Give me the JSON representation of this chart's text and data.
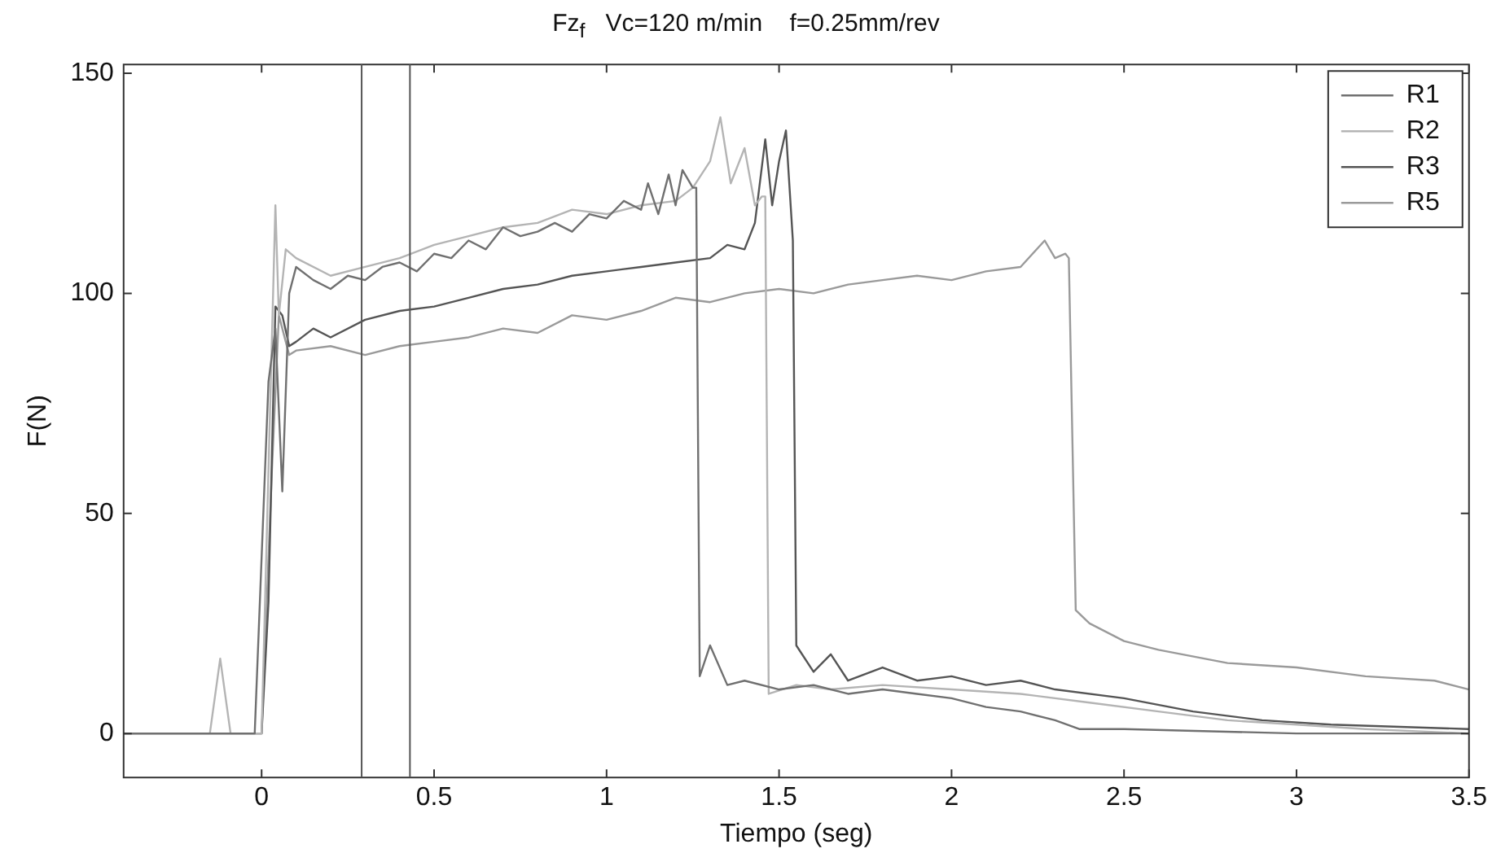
{
  "chart_data": {
    "type": "line",
    "title": "Fz$_{f}$   Vc=120 m/min    f=0.25mm/rev",
    "xlabel": "Tiempo (seg)",
    "ylabel": "F(N)",
    "xlim": [
      -0.4,
      3.5
    ],
    "xticks": [
      0,
      0.5,
      1,
      1.5,
      2,
      2.5,
      3,
      3.5
    ],
    "ylim": [
      -10,
      152
    ],
    "yticks": [
      0,
      50,
      100,
      150
    ],
    "grid": false,
    "legend": "top right",
    "line_style": "solid",
    "marker": "none",
    "ref_lines": [
      {
        "axis": "x",
        "value": 0.29,
        "color": "#555555"
      },
      {
        "axis": "x",
        "value": 0.43,
        "color": "#555555"
      }
    ],
    "series": [
      {
        "name": "R1",
        "color": "#707070",
        "x": [
          -0.4,
          -0.02,
          0.0,
          0.02,
          0.04,
          0.06,
          0.08,
          0.1,
          0.15,
          0.2,
          0.25,
          0.3,
          0.35,
          0.4,
          0.45,
          0.5,
          0.55,
          0.6,
          0.65,
          0.7,
          0.75,
          0.8,
          0.85,
          0.9,
          0.95,
          1.0,
          1.05,
          1.1,
          1.12,
          1.15,
          1.18,
          1.2,
          1.22,
          1.25,
          1.26,
          1.27,
          1.3,
          1.35,
          1.4,
          1.5,
          1.6,
          1.7,
          1.8,
          1.9,
          2.0,
          2.1,
          2.2,
          2.3,
          2.37,
          2.5,
          3.0,
          3.5
        ],
        "values": [
          0,
          0,
          40,
          80,
          92,
          55,
          100,
          106,
          103,
          101,
          104,
          103,
          106,
          107,
          105,
          109,
          108,
          112,
          110,
          115,
          113,
          114,
          116,
          114,
          118,
          117,
          121,
          119,
          125,
          118,
          127,
          120,
          128,
          124,
          124,
          13,
          20,
          11,
          12,
          10,
          11,
          9,
          10,
          9,
          8,
          6,
          5,
          3,
          1,
          1,
          0,
          0
        ]
      },
      {
        "name": "R2",
        "color": "#b4b4b4",
        "x": [
          -0.4,
          -0.15,
          -0.12,
          -0.09,
          0.0,
          0.02,
          0.04,
          0.05,
          0.07,
          0.1,
          0.2,
          0.3,
          0.4,
          0.5,
          0.6,
          0.7,
          0.8,
          0.9,
          1.0,
          1.1,
          1.2,
          1.25,
          1.3,
          1.33,
          1.36,
          1.4,
          1.43,
          1.45,
          1.46,
          1.47,
          1.55,
          1.65,
          1.8,
          2.0,
          2.2,
          2.4,
          2.6,
          2.8,
          3.0,
          3.2,
          3.5
        ],
        "values": [
          0,
          0,
          17,
          0,
          0,
          60,
          120,
          95,
          110,
          108,
          104,
          106,
          108,
          111,
          113,
          115,
          116,
          119,
          118,
          120,
          121,
          124,
          130,
          140,
          125,
          133,
          120,
          122,
          122,
          9,
          11,
          10,
          11,
          10,
          9,
          7,
          5,
          3,
          2,
          1,
          0
        ]
      },
      {
        "name": "R3",
        "color": "#555555",
        "x": [
          -0.4,
          0.0,
          0.02,
          0.04,
          0.06,
          0.08,
          0.1,
          0.15,
          0.2,
          0.3,
          0.4,
          0.5,
          0.6,
          0.7,
          0.8,
          0.9,
          1.0,
          1.1,
          1.2,
          1.3,
          1.35,
          1.4,
          1.43,
          1.46,
          1.48,
          1.5,
          1.52,
          1.54,
          1.55,
          1.6,
          1.65,
          1.7,
          1.8,
          1.9,
          2.0,
          2.1,
          2.2,
          2.3,
          2.5,
          2.7,
          2.9,
          3.1,
          3.5
        ],
        "values": [
          0,
          0,
          30,
          97,
          95,
          88,
          89,
          92,
          90,
          94,
          96,
          97,
          99,
          101,
          102,
          104,
          105,
          106,
          107,
          108,
          111,
          110,
          116,
          135,
          120,
          130,
          137,
          112,
          20,
          14,
          18,
          12,
          15,
          12,
          13,
          11,
          12,
          10,
          8,
          5,
          3,
          2,
          1
        ]
      },
      {
        "name": "R5",
        "color": "#9a9a9a",
        "x": [
          -0.4,
          0.0,
          0.03,
          0.05,
          0.08,
          0.1,
          0.2,
          0.3,
          0.4,
          0.5,
          0.6,
          0.7,
          0.8,
          0.9,
          1.0,
          1.1,
          1.2,
          1.3,
          1.4,
          1.5,
          1.6,
          1.7,
          1.8,
          1.9,
          2.0,
          2.1,
          2.2,
          2.27,
          2.3,
          2.33,
          2.34,
          2.36,
          2.4,
          2.5,
          2.6,
          2.8,
          3.0,
          3.2,
          3.4,
          3.5
        ],
        "values": [
          0,
          0,
          60,
          95,
          86,
          87,
          88,
          86,
          88,
          89,
          90,
          92,
          91,
          95,
          94,
          96,
          99,
          98,
          100,
          101,
          100,
          102,
          103,
          104,
          103,
          105,
          106,
          112,
          108,
          109,
          108,
          28,
          25,
          21,
          19,
          16,
          15,
          13,
          12,
          10
        ]
      }
    ]
  }
}
